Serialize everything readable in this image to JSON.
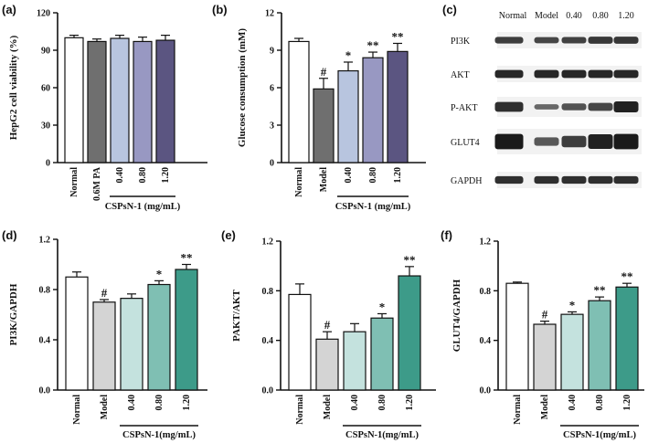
{
  "panel_labels": [
    "(a)",
    "(b)",
    "(c)",
    "(d)",
    "(e)",
    "(f)"
  ],
  "colors": {
    "axis": "#111111",
    "band": "#1a1a1a",
    "blot_bg": "#f2f2f2"
  },
  "chart_data": [
    {
      "id": "a",
      "type": "bar",
      "ylabel": "HepG2 cell viability (%)",
      "ylim": [
        0,
        120
      ],
      "yticks": [
        0,
        30,
        60,
        90,
        120
      ],
      "tick_format": "0",
      "categories": [
        "Normal",
        "0.6M PA",
        "0.40",
        "0.80",
        "1.20"
      ],
      "values": [
        100,
        97,
        99.5,
        97,
        98
      ],
      "errors": [
        2,
        2,
        2.5,
        3.5,
        4
      ],
      "colors": [
        "#ffffff",
        "#6f6f6f",
        "#b8c5df",
        "#9898c2",
        "#5b5581"
      ],
      "significance": [
        "",
        "",
        "",
        "",
        ""
      ],
      "group_label": "CSPsN-1 (mg/mL)",
      "group_from": 2
    },
    {
      "id": "b",
      "type": "bar",
      "ylabel": "Glucose consumption (mM)",
      "ylim": [
        0,
        12
      ],
      "yticks": [
        0,
        3,
        6,
        9,
        12
      ],
      "tick_format": "0",
      "categories": [
        "Normal",
        "Model",
        "0.40",
        "0.80",
        "1.20"
      ],
      "values": [
        9.7,
        5.9,
        7.35,
        8.4,
        8.9
      ],
      "errors": [
        0.25,
        0.85,
        0.7,
        0.45,
        0.65
      ],
      "colors": [
        "#ffffff",
        "#6f6f6f",
        "#b8c5df",
        "#9898c2",
        "#5b5581"
      ],
      "significance": [
        "",
        "#",
        "*",
        "**",
        "**"
      ],
      "group_label": "CSPsN-1 (mg/mL)",
      "group_from": 2
    },
    {
      "id": "d",
      "type": "bar",
      "ylabel": "PI3K/GAPDH",
      "ylim": [
        0,
        1.2
      ],
      "yticks": [
        0,
        0.4,
        0.8,
        1.2
      ],
      "tick_format": "0.0",
      "categories": [
        "Normal",
        "Model",
        "0.40",
        "0.80",
        "1.20"
      ],
      "values": [
        0.9,
        0.7,
        0.73,
        0.84,
        0.96
      ],
      "errors": [
        0.04,
        0.02,
        0.035,
        0.03,
        0.04
      ],
      "colors": [
        "#ffffff",
        "#d4d4d4",
        "#c4e2de",
        "#7fbfb3",
        "#3d9b89"
      ],
      "significance": [
        "",
        "#",
        "",
        "*",
        "**"
      ],
      "group_label": "CSPsN-1(mg/mL)",
      "group_from": 2
    },
    {
      "id": "e",
      "type": "bar",
      "ylabel": "PAKT/AKT",
      "ylim": [
        0,
        1.2
      ],
      "yticks": [
        0,
        0.4,
        0.8,
        1.2
      ],
      "tick_format": "0.0",
      "categories": [
        "Normal",
        "Model",
        "0.40",
        "0.80",
        "1.20"
      ],
      "values": [
        0.77,
        0.41,
        0.47,
        0.58,
        0.92
      ],
      "errors": [
        0.085,
        0.06,
        0.065,
        0.035,
        0.075
      ],
      "colors": [
        "#ffffff",
        "#d4d4d4",
        "#c4e2de",
        "#7fbfb3",
        "#3d9b89"
      ],
      "significance": [
        "",
        "#",
        "",
        "*",
        "**"
      ],
      "group_label": "CSPsN-1(mg/mL)",
      "group_from": 2
    },
    {
      "id": "f",
      "type": "bar",
      "ylabel": "GLUT4/GAPDH",
      "ylim": [
        0,
        1.2
      ],
      "yticks": [
        0,
        0.4,
        0.8,
        1.2
      ],
      "tick_format": "0.0",
      "categories": [
        "Normal",
        "Model",
        "0.40",
        "0.80",
        "1.20"
      ],
      "values": [
        0.86,
        0.53,
        0.61,
        0.72,
        0.83
      ],
      "errors": [
        0.01,
        0.025,
        0.02,
        0.03,
        0.03
      ],
      "colors": [
        "#ffffff",
        "#d4d4d4",
        "#c4e2de",
        "#7fbfb3",
        "#3d9b89"
      ],
      "significance": [
        "",
        "#",
        "*",
        "**",
        "**"
      ],
      "group_label": "CSPsN-1(mg/mL)",
      "group_from": 2
    }
  ],
  "blot": {
    "columns": [
      "Normal",
      "Model",
      "0.40",
      "0.80",
      "1.20"
    ],
    "rows": [
      {
        "label": "PI3K",
        "intensity": [
          0.75,
          0.7,
          0.72,
          0.78,
          0.8
        ]
      },
      {
        "label": "AKT",
        "intensity": [
          0.9,
          0.9,
          0.9,
          0.9,
          0.9
        ]
      },
      {
        "label": "P-AKT",
        "intensity": [
          0.85,
          0.45,
          0.6,
          0.7,
          0.95
        ]
      },
      {
        "label": "GLUT4",
        "intensity": [
          1.0,
          0.55,
          0.75,
          0.95,
          1.0
        ]
      },
      {
        "label": "GAPDH",
        "intensity": [
          0.85,
          0.85,
          0.85,
          0.85,
          0.85
        ]
      }
    ]
  }
}
